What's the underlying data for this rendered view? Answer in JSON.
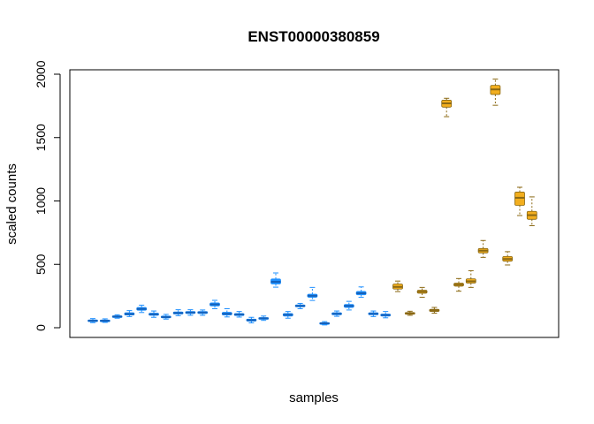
{
  "chart_data": {
    "type": "box",
    "title": "ENST00000380859",
    "xlabel": "samples",
    "ylabel": "scaled counts",
    "ylim": [
      -80,
      2040
    ],
    "yticks": [
      0,
      500,
      1000,
      1500,
      2000
    ],
    "legend": "none",
    "grid": false,
    "group_colors": {
      "blue": {
        "fill": "#1e90ff",
        "line": "#1e90ff",
        "median": "#1560b8"
      },
      "gold": {
        "fill": "#f2ae1e",
        "line": "#8b6914",
        "median": "#8b6914"
      }
    },
    "boxes": [
      {
        "group": "blue",
        "min": 40,
        "q1": 50,
        "median": 55,
        "q3": 62,
        "max": 72
      },
      {
        "group": "blue",
        "min": 42,
        "q1": 50,
        "median": 55,
        "q3": 61,
        "max": 70
      },
      {
        "group": "blue",
        "min": 75,
        "q1": 83,
        "median": 88,
        "q3": 94,
        "max": 102
      },
      {
        "group": "blue",
        "min": 88,
        "q1": 100,
        "median": 108,
        "q3": 118,
        "max": 135
      },
      {
        "group": "blue",
        "min": 120,
        "q1": 138,
        "median": 148,
        "q3": 160,
        "max": 178
      },
      {
        "group": "blue",
        "min": 82,
        "q1": 98,
        "median": 106,
        "q3": 115,
        "max": 132
      },
      {
        "group": "blue",
        "min": 68,
        "q1": 78,
        "median": 84,
        "q3": 92,
        "max": 105
      },
      {
        "group": "blue",
        "min": 95,
        "q1": 108,
        "median": 116,
        "q3": 124,
        "max": 142
      },
      {
        "group": "blue",
        "min": 98,
        "q1": 112,
        "median": 120,
        "q3": 128,
        "max": 142
      },
      {
        "group": "blue",
        "min": 98,
        "q1": 112,
        "median": 120,
        "q3": 128,
        "max": 140
      },
      {
        "group": "blue",
        "min": 150,
        "q1": 172,
        "median": 184,
        "q3": 196,
        "max": 216
      },
      {
        "group": "blue",
        "min": 85,
        "q1": 100,
        "median": 110,
        "q3": 122,
        "max": 150
      },
      {
        "group": "blue",
        "min": 84,
        "q1": 96,
        "median": 104,
        "q3": 112,
        "max": 128
      },
      {
        "group": "blue",
        "min": 38,
        "q1": 52,
        "median": 60,
        "q3": 68,
        "max": 82
      },
      {
        "group": "blue",
        "min": 58,
        "q1": 68,
        "median": 74,
        "q3": 80,
        "max": 92
      },
      {
        "group": "blue",
        "min": 320,
        "q1": 345,
        "median": 362,
        "q3": 385,
        "max": 432
      },
      {
        "group": "blue",
        "min": 75,
        "q1": 92,
        "median": 102,
        "q3": 112,
        "max": 128
      },
      {
        "group": "blue",
        "min": 150,
        "q1": 165,
        "median": 172,
        "q3": 180,
        "max": 192
      },
      {
        "group": "blue",
        "min": 215,
        "q1": 240,
        "median": 252,
        "q3": 265,
        "max": 318
      },
      {
        "group": "blue",
        "min": 22,
        "q1": 30,
        "median": 35,
        "q3": 40,
        "max": 48
      },
      {
        "group": "blue",
        "min": 90,
        "q1": 102,
        "median": 110,
        "q3": 118,
        "max": 132
      },
      {
        "group": "blue",
        "min": 140,
        "q1": 160,
        "median": 172,
        "q3": 184,
        "max": 208
      },
      {
        "group": "blue",
        "min": 240,
        "q1": 260,
        "median": 272,
        "q3": 286,
        "max": 322
      },
      {
        "group": "blue",
        "min": 88,
        "q1": 102,
        "median": 110,
        "q3": 118,
        "max": 132
      },
      {
        "group": "blue",
        "min": 78,
        "q1": 92,
        "median": 100,
        "q3": 108,
        "max": 128
      },
      {
        "group": "gold",
        "min": 285,
        "q1": 305,
        "median": 322,
        "q3": 345,
        "max": 368
      },
      {
        "group": "gold",
        "min": 98,
        "q1": 108,
        "median": 114,
        "q3": 120,
        "max": 130
      },
      {
        "group": "gold",
        "min": 240,
        "q1": 272,
        "median": 284,
        "q3": 296,
        "max": 318
      },
      {
        "group": "gold",
        "min": 115,
        "q1": 128,
        "median": 136,
        "q3": 145,
        "max": 160
      },
      {
        "group": "gold",
        "min": 1665,
        "q1": 1740,
        "median": 1770,
        "q3": 1795,
        "max": 1810
      },
      {
        "group": "gold",
        "min": 288,
        "q1": 328,
        "median": 340,
        "q3": 352,
        "max": 388
      },
      {
        "group": "gold",
        "min": 318,
        "q1": 352,
        "median": 366,
        "q3": 386,
        "max": 450
      },
      {
        "group": "gold",
        "min": 555,
        "q1": 590,
        "median": 608,
        "q3": 625,
        "max": 688
      },
      {
        "group": "gold",
        "min": 1755,
        "q1": 1840,
        "median": 1880,
        "q3": 1912,
        "max": 1962
      },
      {
        "group": "gold",
        "min": 495,
        "q1": 525,
        "median": 542,
        "q3": 562,
        "max": 600
      },
      {
        "group": "gold",
        "min": 885,
        "q1": 965,
        "median": 1025,
        "q3": 1070,
        "max": 1108
      },
      {
        "group": "gold",
        "min": 805,
        "q1": 855,
        "median": 888,
        "q3": 918,
        "max": 1032
      }
    ]
  }
}
